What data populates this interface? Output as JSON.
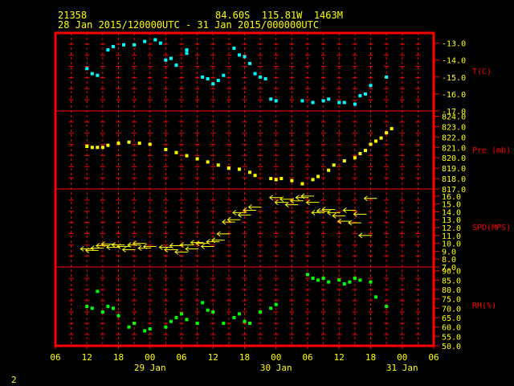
{
  "header": {
    "station_id": "21358",
    "location": "84.60S  115.81W  1463M",
    "time_range": "28 Jan 2015/120000UTC - 31 Jan 2015/000000UTC"
  },
  "footer": {
    "page": "2"
  },
  "colors": {
    "frame": "#ff0000",
    "grid": "#ff0000",
    "text": "#ffff00",
    "temp": "#00ffff",
    "pressure": "#ffff00",
    "wind": "#ffff00",
    "rh": "#00ff00"
  },
  "chart_data": [
    {
      "type": "scatter",
      "panel": "temperature",
      "ylabel": "T(C)",
      "ylim": [
        -17.0,
        -12.4
      ],
      "yticks": [
        -13.0,
        -14.0,
        -15.0,
        -16.0,
        -17.0
      ],
      "ytick_labels": [
        "-13.0",
        "-14.0",
        "-15.0",
        "-16.0",
        "-17.0"
      ],
      "x_hours": [
        12,
        13,
        14,
        16,
        17,
        19,
        21,
        23,
        25,
        26,
        27,
        28,
        29,
        31,
        31,
        34,
        35,
        36,
        37,
        38,
        40,
        41,
        42,
        43,
        44,
        45,
        46,
        47,
        48,
        53,
        55,
        57,
        58,
        60,
        61,
        63,
        64,
        65,
        66,
        69
      ],
      "y": [
        -14.5,
        -14.8,
        -14.9,
        -13.4,
        -13.2,
        -13.1,
        -13.1,
        -12.9,
        -12.8,
        -13.0,
        -14.0,
        -13.9,
        -14.3,
        -13.6,
        -13.4,
        -15.0,
        -15.1,
        -15.4,
        -15.2,
        -14.9,
        -13.3,
        -13.7,
        -13.8,
        -14.2,
        -14.8,
        -15.0,
        -15.1,
        -16.3,
        -16.4,
        -16.4,
        -16.5,
        -16.4,
        -16.3,
        -16.5,
        -16.5,
        -16.6,
        -16.1,
        -16.0,
        -15.5,
        -15.0
      ]
    },
    {
      "type": "scatter",
      "panel": "pressure",
      "ylabel": "Pre (mb)",
      "ylim": [
        817.0,
        824.5
      ],
      "yticks": [
        824.0,
        823.0,
        822.0,
        821.0,
        820.0,
        819.0,
        818.0,
        817.0
      ],
      "ytick_labels": [
        "824.0",
        "823.0",
        "822.0",
        "821.0",
        "820.0",
        "819.0",
        "818.0",
        "817.0"
      ],
      "x_hours": [
        12,
        13,
        14,
        15,
        16,
        18,
        20,
        22,
        24,
        27,
        29,
        31,
        33,
        35,
        37,
        39,
        41,
        43,
        44,
        47,
        48,
        49,
        51,
        53,
        55,
        56,
        58,
        59,
        61,
        63,
        64,
        65,
        66,
        67,
        68,
        69,
        70
      ],
      "y": [
        821.1,
        821.0,
        821.0,
        821.0,
        821.2,
        821.4,
        821.5,
        821.4,
        821.3,
        820.8,
        820.5,
        820.2,
        819.9,
        819.6,
        819.3,
        819.0,
        818.9,
        818.6,
        818.3,
        818.0,
        817.9,
        818.0,
        817.8,
        817.5,
        817.9,
        818.2,
        818.8,
        819.3,
        819.7,
        820.0,
        820.4,
        820.7,
        821.3,
        821.6,
        821.9,
        822.4,
        822.8
      ]
    },
    {
      "type": "scatter",
      "panel": "wind",
      "ylabel": "SPD(MPS)",
      "ylim": [
        7.0,
        16.9
      ],
      "yticks": [
        16.0,
        15.0,
        14.0,
        13.0,
        12.0,
        11.0,
        10.0,
        9.0,
        8.0,
        7.0
      ],
      "ytick_labels": [
        "16.0",
        "15.0",
        "14.0",
        "13.0",
        "12.0",
        "11.0",
        "10.0",
        "9.0",
        "8.0",
        "7.0"
      ],
      "x_hours": [
        12,
        13,
        14,
        15,
        16,
        17,
        18,
        19,
        20,
        21,
        22,
        23,
        24,
        27,
        28,
        29,
        30,
        31,
        32,
        33,
        34,
        35,
        36,
        37,
        38,
        39,
        40,
        41,
        42,
        43,
        44,
        48,
        49,
        50,
        51,
        52,
        53,
        54,
        55,
        56,
        57,
        58,
        59,
        60,
        61,
        62,
        63,
        64,
        65,
        66
      ],
      "y": [
        9.3,
        9.1,
        9.4,
        9.7,
        9.9,
        9.5,
        9.8,
        9.6,
        9.2,
        9.8,
        10.0,
        9.4,
        9.6,
        9.5,
        9.2,
        9.7,
        8.9,
        9.8,
        9.3,
        10.1,
        10.0,
        9.6,
        10.2,
        10.4,
        11.2,
        12.7,
        13.0,
        13.9,
        13.6,
        14.2,
        14.6,
        15.8,
        15.2,
        15.6,
        14.9,
        15.4,
        15.8,
        16.0,
        15.2,
        13.9,
        14.1,
        14.3,
        13.9,
        13.5,
        12.8,
        14.2,
        12.6,
        13.7,
        11.0,
        15.7
      ]
    },
    {
      "type": "scatter",
      "panel": "relative_humidity",
      "ylabel": "RH(%)",
      "ylim": [
        50.0,
        92.0
      ],
      "yticks": [
        90.0,
        85.0,
        80.0,
        75.0,
        70.0,
        65.0,
        60.0,
        55.0,
        50.0
      ],
      "ytick_labels": [
        "90.0",
        "85.0",
        "80.0",
        "75.0",
        "70.0",
        "65.0",
        "60.0",
        "55.0",
        "50.0"
      ],
      "x_hours": [
        12,
        13,
        14,
        15,
        16,
        17,
        18,
        20,
        21,
        23,
        24,
        27,
        28,
        29,
        30,
        31,
        33,
        34,
        35,
        36,
        38,
        40,
        41,
        42,
        43,
        45,
        47,
        48,
        54,
        55,
        56,
        57,
        58,
        60,
        61,
        62,
        63,
        64,
        66,
        67,
        69
      ],
      "y": [
        71.0,
        70.0,
        79.0,
        68.0,
        71.0,
        70.0,
        66.0,
        60.0,
        62.0,
        58.0,
        59.0,
        60.0,
        63.0,
        65.0,
        67.0,
        64.0,
        62.0,
        73.0,
        69.0,
        68.0,
        62.0,
        65.0,
        67.0,
        63.0,
        62.0,
        68.0,
        70.0,
        72.0,
        88.0,
        86.0,
        85.0,
        86.0,
        84.0,
        85.0,
        83.0,
        84.0,
        86.0,
        85.0,
        84.0,
        76.0,
        71.0
      ]
    }
  ],
  "x_axis": {
    "range_hours": [
      6,
      78
    ],
    "tick_hours": [
      6,
      12,
      18,
      24,
      30,
      36,
      42,
      48,
      54,
      60,
      66,
      72,
      78
    ],
    "tick_labels": [
      "06",
      "12",
      "18",
      "00",
      "06",
      "12",
      "18",
      "00",
      "06",
      "12",
      "18",
      "00",
      "06"
    ],
    "day_labels": [
      {
        "hour": 24,
        "label": "29 Jan"
      },
      {
        "hour": 48,
        "label": "30 Jan"
      },
      {
        "hour": 72,
        "label": "31 Jan"
      }
    ]
  }
}
